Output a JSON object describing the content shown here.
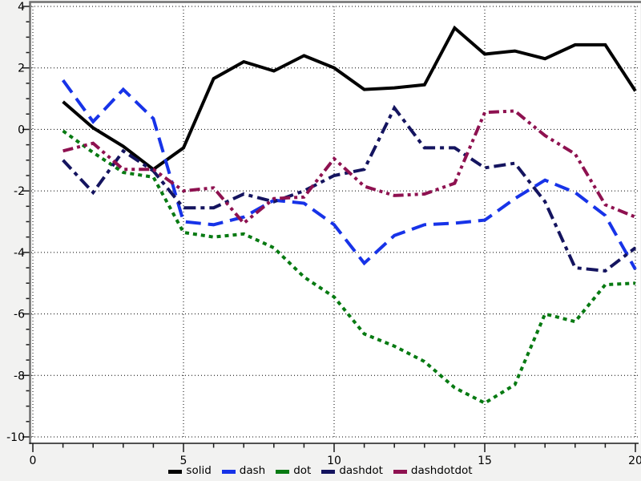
{
  "chart_data": {
    "type": "line",
    "title": "",
    "xlabel": "",
    "ylabel": "",
    "x": [
      1,
      2,
      3,
      4,
      5,
      6,
      7,
      8,
      9,
      10,
      11,
      12,
      13,
      14,
      15,
      16,
      17,
      18,
      19,
      20
    ],
    "series": [
      {
        "name": "solid",
        "style": "solid",
        "color": "#000000",
        "values": [
          0.9,
          0.05,
          -0.55,
          -1.3,
          -0.6,
          1.65,
          2.2,
          1.9,
          2.4,
          2.0,
          1.3,
          1.35,
          1.45,
          3.3,
          2.45,
          2.55,
          2.3,
          2.75,
          2.75,
          1.25
        ]
      },
      {
        "name": "dash",
        "style": "dash",
        "color": "#1733e8",
        "values": [
          1.6,
          0.25,
          1.3,
          0.35,
          -3.0,
          -3.1,
          -2.85,
          -2.3,
          -2.4,
          -3.1,
          -4.35,
          -3.45,
          -3.1,
          -3.05,
          -2.95,
          -2.25,
          -1.65,
          -2.05,
          -2.8,
          -4.55
        ]
      },
      {
        "name": "dot",
        "style": "dot",
        "color": "#077a12",
        "values": [
          -0.05,
          -0.75,
          -1.4,
          -1.55,
          -3.35,
          -3.5,
          -3.4,
          -3.85,
          -4.8,
          -5.45,
          -6.65,
          -7.05,
          -7.55,
          -8.4,
          -8.9,
          -8.3,
          -6.0,
          -6.25,
          -5.05,
          -5.0
        ]
      },
      {
        "name": "dashdot",
        "style": "dashdot",
        "color": "#14145f",
        "values": [
          -1.0,
          -2.05,
          -0.7,
          -1.35,
          -2.55,
          -2.55,
          -2.1,
          -2.35,
          -2.0,
          -1.5,
          -1.3,
          0.7,
          -0.6,
          -0.6,
          -1.25,
          -1.1,
          -2.35,
          -4.5,
          -4.6,
          -3.85
        ]
      },
      {
        "name": "dashdotdot",
        "style": "dashdotdot",
        "color": "#8e1150",
        "values": [
          -0.7,
          -0.45,
          -1.3,
          -1.3,
          -2.0,
          -1.9,
          -3.05,
          -2.25,
          -2.2,
          -0.95,
          -1.85,
          -2.15,
          -2.1,
          -1.75,
          0.55,
          0.6,
          -0.2,
          -0.8,
          -2.45,
          -2.85
        ]
      }
    ],
    "xlim": [
      0,
      20
    ],
    "ylim": [
      -10,
      4
    ],
    "xticks": {
      "major": [
        0,
        5,
        10,
        15,
        20
      ],
      "minor_step": 1
    },
    "yticks": {
      "major": [
        4,
        2,
        0,
        -2,
        -4,
        -6,
        -8,
        -10
      ],
      "minor_step": 0.5
    },
    "grid": {
      "on": true,
      "style": "dotted",
      "color": "#000000"
    },
    "legend": {
      "position": "bottom-center",
      "entries": [
        "solid",
        "dash",
        "dot",
        "dashdot",
        "dashdotdot"
      ]
    },
    "colors": {
      "outer_background": "#f2f2f1",
      "plot_background": "#ffffff",
      "frame": "#6f6f6f",
      "axis": "#1a1a1a",
      "tick_label": "#000000"
    }
  }
}
